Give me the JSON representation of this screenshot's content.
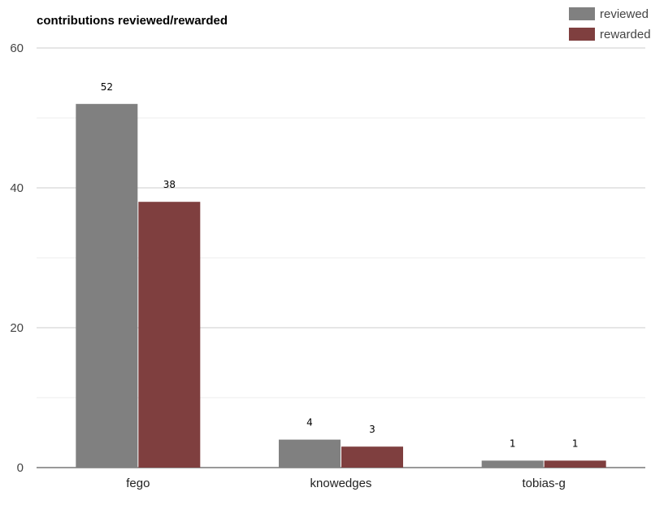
{
  "chart_data": {
    "type": "bar",
    "title": "contributions reviewed/rewarded",
    "xlabel": "",
    "ylabel": "",
    "categories": [
      "fego",
      "knowedges",
      "tobias-g"
    ],
    "series": [
      {
        "name": "reviewed",
        "values": [
          52,
          4,
          1
        ],
        "color": "#808080"
      },
      {
        "name": "rewarded",
        "values": [
          38,
          3,
          1
        ],
        "color": "#7f3f3f"
      }
    ],
    "ylim": [
      0,
      60
    ],
    "yticks": [
      0,
      20,
      40,
      60
    ],
    "grid": true,
    "legend_position": "top-right",
    "data_labels": true
  }
}
